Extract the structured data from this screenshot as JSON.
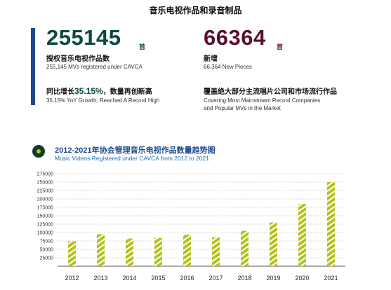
{
  "page_title": "音乐电视作品和录音制品",
  "stats": {
    "mv_total": {
      "number": "255145",
      "unit": "首",
      "title": "授权音乐电视作品数",
      "subtitle": "255,145 MVs registered under CAVCA"
    },
    "growth": {
      "prefix": "同比增长",
      "percent": "35.15%",
      "suffix": "，数量再创新高",
      "subtitle": "35.15% YoY Growth, Reached A Record High"
    },
    "new_pieces": {
      "number": "66364",
      "unit": "首",
      "title": "新增",
      "subtitle": "66,364 New Pieces"
    },
    "coverage": {
      "title": "覆盖绝大部分主流唱片公司和市场流行作品",
      "subtitle_line1": "Covering Most Mainstream Record Companies",
      "subtitle_line2": "and Popular MVs in the Market"
    }
  },
  "colors": {
    "teal": "#0b4a40",
    "maroon": "#5a0f2e",
    "blue": "#1c4a8c",
    "bar": "#b5c21a"
  },
  "chart_data": {
    "type": "bar",
    "title": "2012-2021年协会管理音乐电视作品数量趋势图",
    "subtitle": "Music Videos Registered under CAVCA from 2012 to 2021",
    "categories": [
      "2012",
      "2013",
      "2014",
      "2015",
      "2016",
      "2017",
      "2018",
      "2019",
      "2020",
      "2021"
    ],
    "values": [
      74000,
      95000,
      82000,
      84000,
      94000,
      86000,
      105000,
      130000,
      185000,
      250000
    ],
    "y_ticks": [
      "275000",
      "250000",
      "225000",
      "200000",
      "175000",
      "150000",
      "125000",
      "100000",
      "75000",
      "50000",
      "25000"
    ],
    "ylim": [
      0,
      275000
    ],
    "xlabel": "",
    "ylabel": "",
    "grid": true
  }
}
